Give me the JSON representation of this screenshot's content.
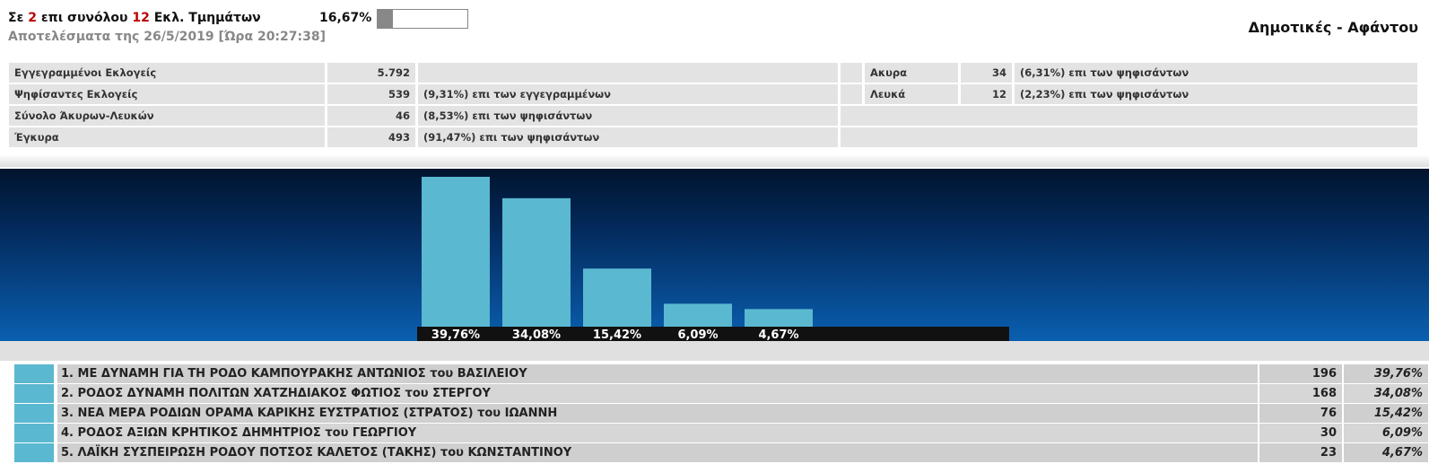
{
  "header": {
    "progress_prefix": "Σε",
    "counted": "2",
    "progress_middle": "επι συνόλου",
    "total": "12",
    "progress_suffix": "Εκλ. Τμημάτων",
    "percent_text": "16,67%",
    "progress_fraction": 0.1667,
    "results_time": "Αποτελέσματα της 26/5/2019 [Ώρα 20:27:38]",
    "election_title": "Δημοτικές - Αφάντου"
  },
  "stats": {
    "registered_label": "Εγγεγραμμένοι Εκλογείς",
    "registered_value": "5.792",
    "voted_label": "Ψηφίσαντες Εκλογείς",
    "voted_value": "539",
    "voted_note": "(9,31%) επι των εγγεγραμμένων",
    "invalid_blank_label": "Σύνολο Άκυρων-Λευκών",
    "invalid_blank_value": "46",
    "invalid_blank_note": "(8,53%) επι των ψηφισάντων",
    "valid_label": "Έγκυρα",
    "valid_value": "493",
    "valid_note": "(91,47%) επι των ψηφισάντων",
    "invalid_label": "Ακυρα",
    "invalid_value": "34",
    "invalid_note": "(6,31%) επι των ψηφισάντων",
    "blank_label": "Λευκά",
    "blank_value": "12",
    "blank_note": "(2,23%) επι των ψηφισάντων"
  },
  "colors": {
    "bar": "#5ab8d0",
    "accent_red": "#bb0000",
    "label_strip": "#111111"
  },
  "chart_data": {
    "type": "bar",
    "categories": [
      "1",
      "2",
      "3",
      "4",
      "5"
    ],
    "values": [
      39.76,
      34.08,
      15.42,
      6.09,
      4.67
    ],
    "labels": [
      "39,76%",
      "34,08%",
      "15,42%",
      "6,09%",
      "4,67%"
    ],
    "ylim": [
      0,
      40
    ],
    "title": "",
    "xlabel": "",
    "ylabel": ""
  },
  "candidates": [
    {
      "rank": "1.",
      "name": "ΜΕ ΔΥΝΑΜΗ ΓΙΑ ΤΗ ΡΟΔΟ ΚΑΜΠΟΥΡΑΚΗΣ ΑΝΤΩΝΙΟΣ του ΒΑΣΙΛΕΙΟΥ",
      "votes": "196",
      "pct": "39,76%"
    },
    {
      "rank": "2.",
      "name": "ΡΟΔΟΣ ΔΥΝΑΜΗ ΠΟΛΙΤΩΝ ΧΑΤΖΗΔΙΑΚΟΣ ΦΩΤΙΟΣ του ΣΤΕΡΓΟΥ",
      "votes": "168",
      "pct": "34,08%"
    },
    {
      "rank": "3.",
      "name": "ΝΕΑ ΜΕΡΑ ΡΟΔΙΩΝ ΟΡΑΜΑ ΚΑΡΙΚΗΣ ΕΥΣΤΡΑΤΙΟΣ (ΣΤΡΑΤΟΣ) του ΙΩΑΝΝΗ",
      "votes": "76",
      "pct": "15,42%"
    },
    {
      "rank": "4.",
      "name": "ΡΟΔΟΣ ΑΞΙΩΝ ΚΡΗΤΙΚΟΣ ΔΗΜΗΤΡΙΟΣ του ΓΕΩΡΓΙΟΥ",
      "votes": "30",
      "pct": "6,09%"
    },
    {
      "rank": "5.",
      "name": "ΛΑΪΚΗ ΣΥΣΠΕΙΡΩΣΗ ΡΟΔΟΥ ΠΟΤΣΟΣ ΚΑΛΕΤΟΣ (ΤΑΚΗΣ) του ΚΩΝΣΤΑΝΤΙΝΟΥ",
      "votes": "23",
      "pct": "4,67%"
    }
  ]
}
